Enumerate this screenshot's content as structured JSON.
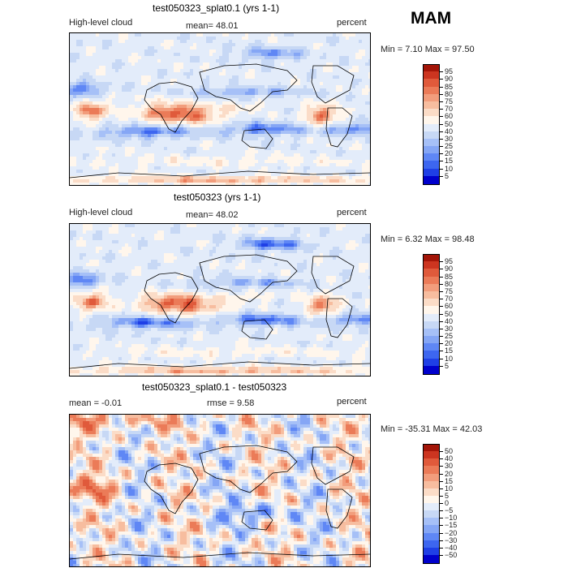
{
  "season": "MAM",
  "palette": {
    "abs": [
      "#00008f",
      "#0000cc",
      "#1f3fe6",
      "#3d66f0",
      "#5f87f5",
      "#85a6f5",
      "#a6c0f7",
      "#c7d8f5",
      "#e3ecfa",
      "#fff6ec",
      "#fbdcc7",
      "#f7bd9f",
      "#f29d7c",
      "#eb7b58",
      "#e05a3b",
      "#cc3520",
      "#a31508",
      "#7a0000"
    ],
    "diff": [
      "#00008f",
      "#0000cc",
      "#1f3fe6",
      "#3d66f0",
      "#5f87f5",
      "#85a6f5",
      "#a6c0f7",
      "#c7d8f5",
      "#e3ecfa",
      "#fff6ec",
      "#fbdcc7",
      "#f7bd9f",
      "#f29d7c",
      "#eb7b58",
      "#e05a3b",
      "#cc3520",
      "#a31508",
      "#7a0000"
    ]
  },
  "panels": [
    {
      "title": "test050323_splat0.1 (yrs 1-1)",
      "left_label": "High-level cloud",
      "center_label": "mean=  48.01",
      "right_label": "percent",
      "minmax": "Min =    7.10 Max =   97.50",
      "colorbar_labels": [
        "95",
        "90",
        "85",
        "80",
        "75",
        "70",
        "60",
        "50",
        "40",
        "30",
        "25",
        "20",
        "15",
        "10",
        "5"
      ]
    },
    {
      "title": "test050323 (yrs 1-1)",
      "left_label": "High-level cloud",
      "center_label": "mean=  48.02",
      "right_label": "percent",
      "minmax": "Min =    6.32 Max =   98.48",
      "colorbar_labels": [
        "95",
        "90",
        "85",
        "80",
        "75",
        "70",
        "60",
        "50",
        "40",
        "30",
        "25",
        "20",
        "15",
        "10",
        "5"
      ]
    },
    {
      "title": "test050323_splat0.1 - test050323",
      "left_label": "mean =   -0.01",
      "center_label": "rmse =    9.58",
      "right_label": "percent",
      "minmax": "Min = -35.31 Max =   42.03",
      "colorbar_labels": [
        "50",
        "40",
        "30",
        "20",
        "15",
        "10",
        "5",
        "0",
        "−5",
        "−10",
        "−15",
        "−20",
        "−30",
        "−40",
        "−50"
      ]
    }
  ],
  "chart_data": [
    {
      "type": "heatmap",
      "title": "test050323_splat0.1 (yrs 1-1)",
      "variable": "High-level cloud",
      "units": "percent",
      "mean": 48.01,
      "min": 7.1,
      "max": 97.5,
      "levels": [
        5,
        10,
        15,
        20,
        25,
        30,
        40,
        50,
        60,
        70,
        75,
        80,
        85,
        90,
        95
      ]
    },
    {
      "type": "heatmap",
      "title": "test050323 (yrs 1-1)",
      "variable": "High-level cloud",
      "units": "percent",
      "mean": 48.02,
      "min": 6.32,
      "max": 98.48,
      "levels": [
        5,
        10,
        15,
        20,
        25,
        30,
        40,
        50,
        60,
        70,
        75,
        80,
        85,
        90,
        95
      ]
    },
    {
      "type": "heatmap",
      "title": "test050323_splat0.1 - test050323",
      "units": "percent",
      "mean": -0.01,
      "rmse": 9.58,
      "min": -35.31,
      "max": 42.03,
      "levels": [
        -50,
        -40,
        -30,
        -20,
        -15,
        -10,
        -5,
        0,
        5,
        10,
        15,
        20,
        30,
        40,
        50
      ]
    }
  ]
}
